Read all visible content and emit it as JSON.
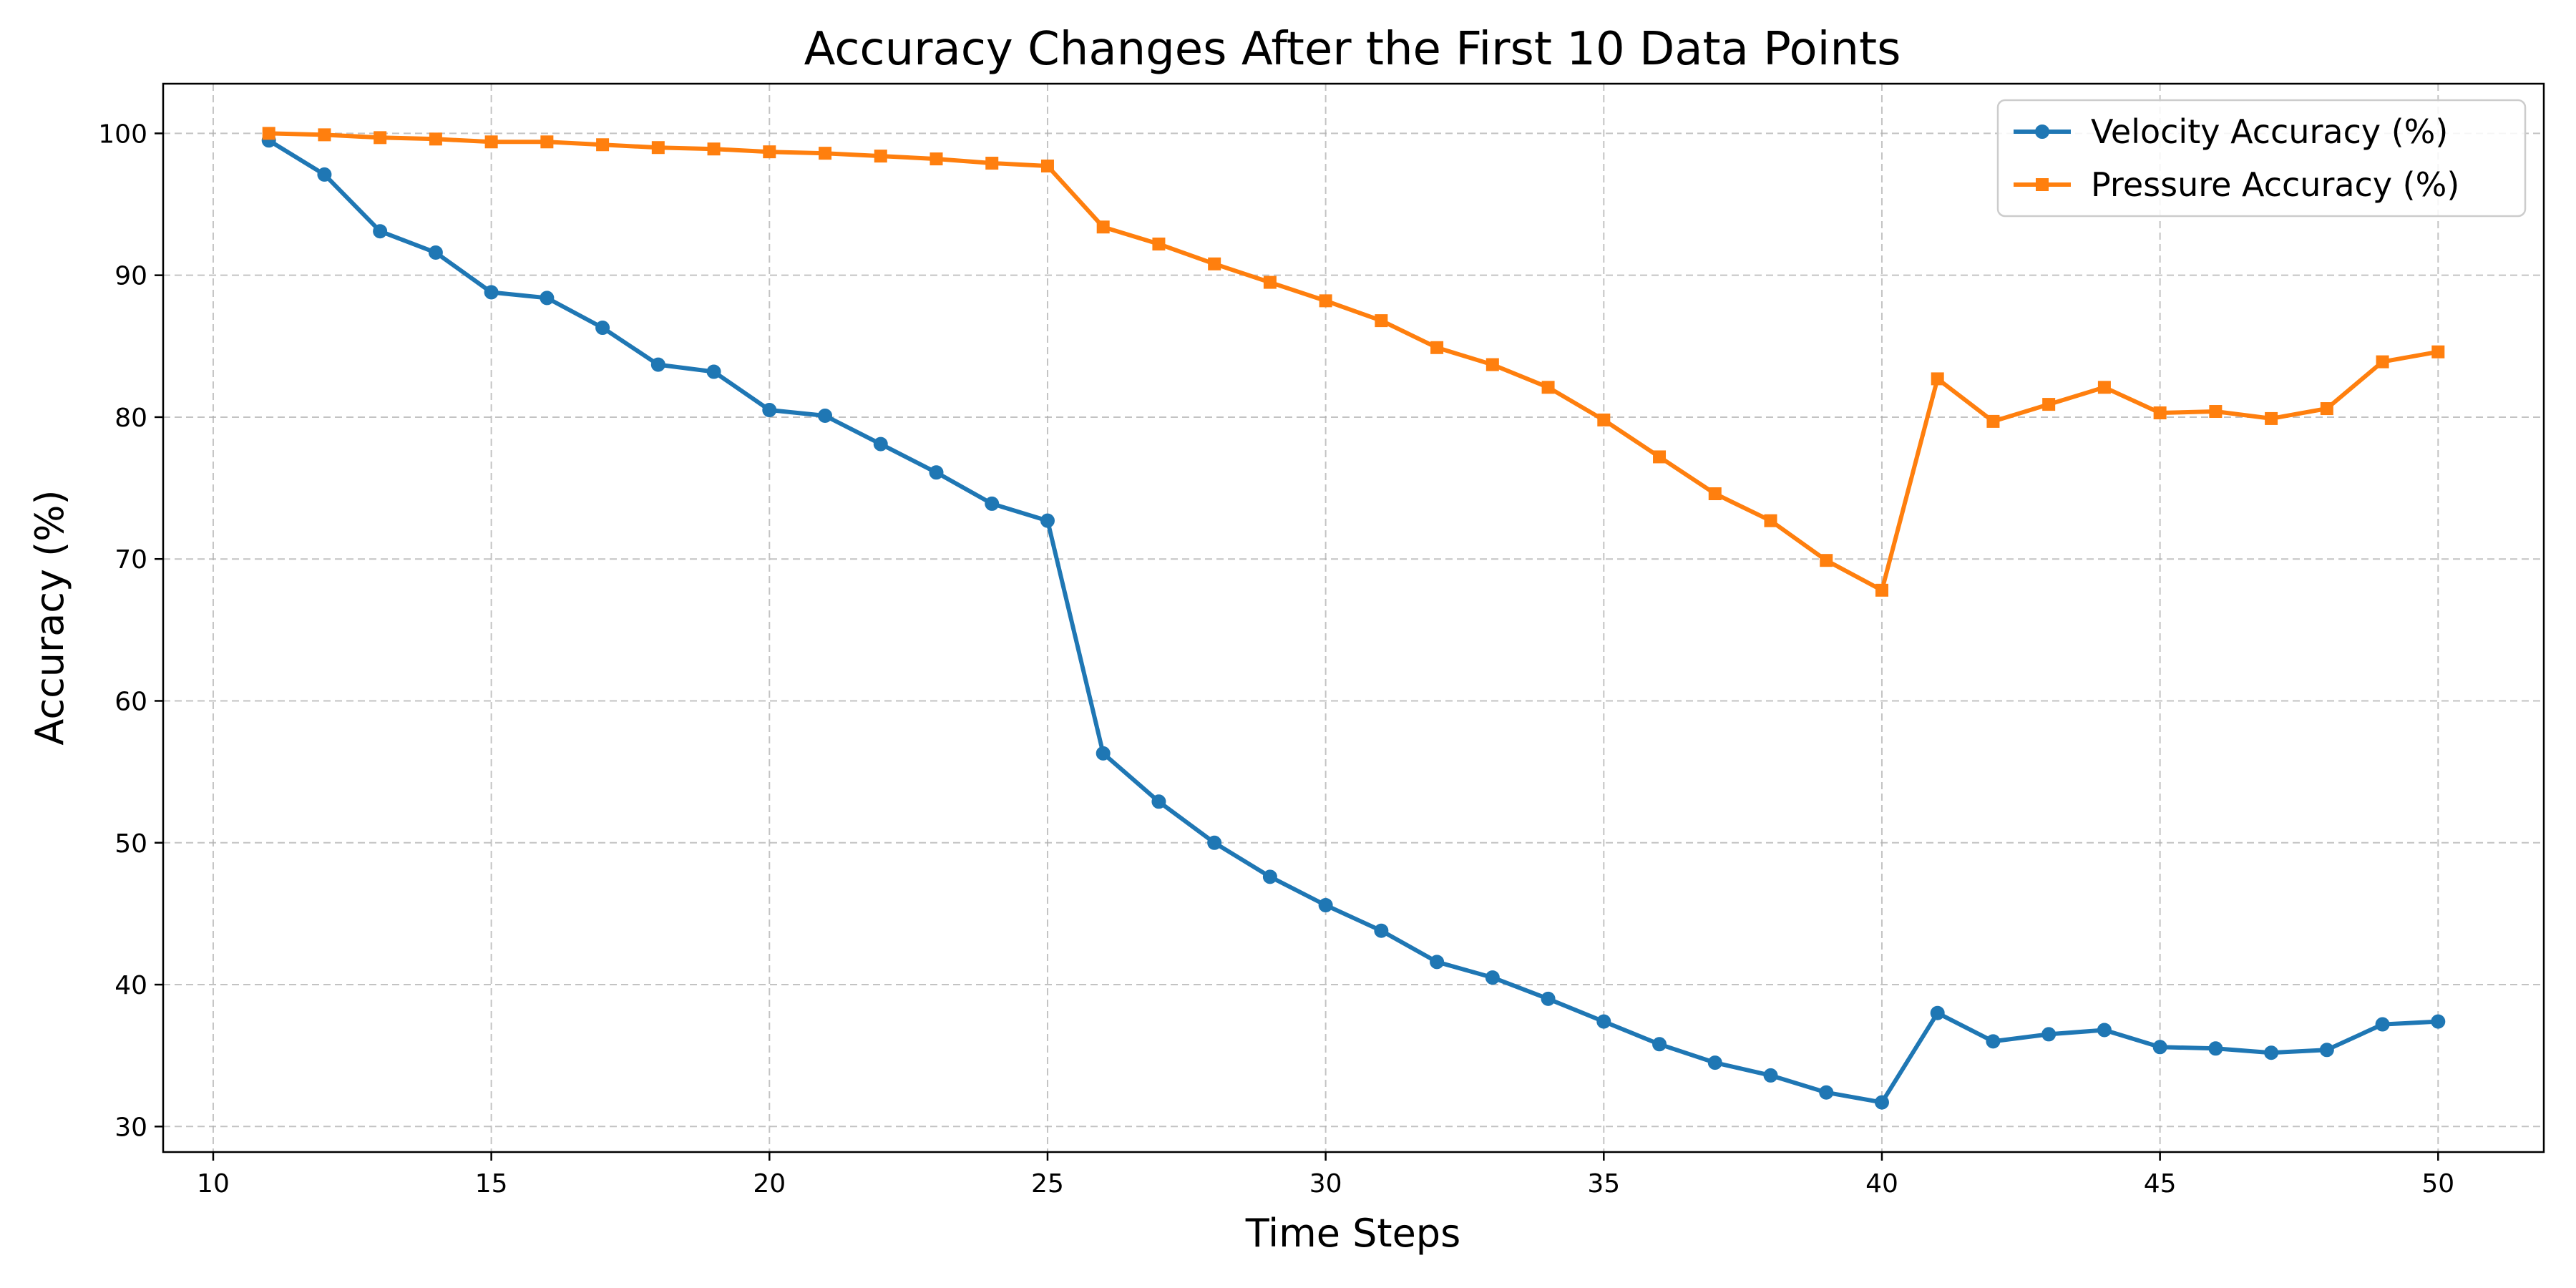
{
  "chart_data": {
    "type": "line",
    "title": "Accuracy Changes After the First 10 Data Points",
    "xlabel": "Time Steps",
    "ylabel": "Accuracy (%)",
    "xlim": [
      9.1,
      51.9
    ],
    "ylim": [
      28.2,
      103.5
    ],
    "xticks": [
      10,
      15,
      20,
      25,
      30,
      35,
      40,
      45,
      50
    ],
    "yticks": [
      30,
      40,
      50,
      60,
      70,
      80,
      90,
      100
    ],
    "grid": true,
    "legend_position": "top-right",
    "x": [
      11,
      12,
      13,
      14,
      15,
      16,
      17,
      18,
      19,
      20,
      21,
      22,
      23,
      24,
      25,
      26,
      27,
      28,
      29,
      30,
      31,
      32,
      33,
      34,
      35,
      36,
      37,
      38,
      39,
      40,
      41,
      42,
      43,
      44,
      45,
      46,
      47,
      48,
      49,
      50
    ],
    "series": [
      {
        "name": "Velocity Accuracy (%)",
        "color": "#1f77b4",
        "marker": "circle",
        "values": [
          99.5,
          97.1,
          93.1,
          91.6,
          88.8,
          88.4,
          86.3,
          83.7,
          83.2,
          80.5,
          80.1,
          78.1,
          76.1,
          73.9,
          72.7,
          56.3,
          52.9,
          50.0,
          47.6,
          45.6,
          43.8,
          41.6,
          40.5,
          39.0,
          37.4,
          35.8,
          34.5,
          33.6,
          32.4,
          31.7,
          38.0,
          36.0,
          36.5,
          36.8,
          35.6,
          35.5,
          35.2,
          35.4,
          37.2,
          37.4
        ]
      },
      {
        "name": "Pressure Accuracy (%)",
        "color": "#ff7f0e",
        "marker": "square",
        "values": [
          100.0,
          99.9,
          99.7,
          99.6,
          99.4,
          99.4,
          99.2,
          99.0,
          98.9,
          98.7,
          98.6,
          98.4,
          98.2,
          97.9,
          97.7,
          93.4,
          92.2,
          90.8,
          89.5,
          88.2,
          86.8,
          84.9,
          83.7,
          82.1,
          79.8,
          77.2,
          74.6,
          72.7,
          69.9,
          67.8,
          82.7,
          79.7,
          80.9,
          82.1,
          80.3,
          80.4,
          79.9,
          80.6,
          83.9,
          84.6
        ]
      }
    ]
  }
}
